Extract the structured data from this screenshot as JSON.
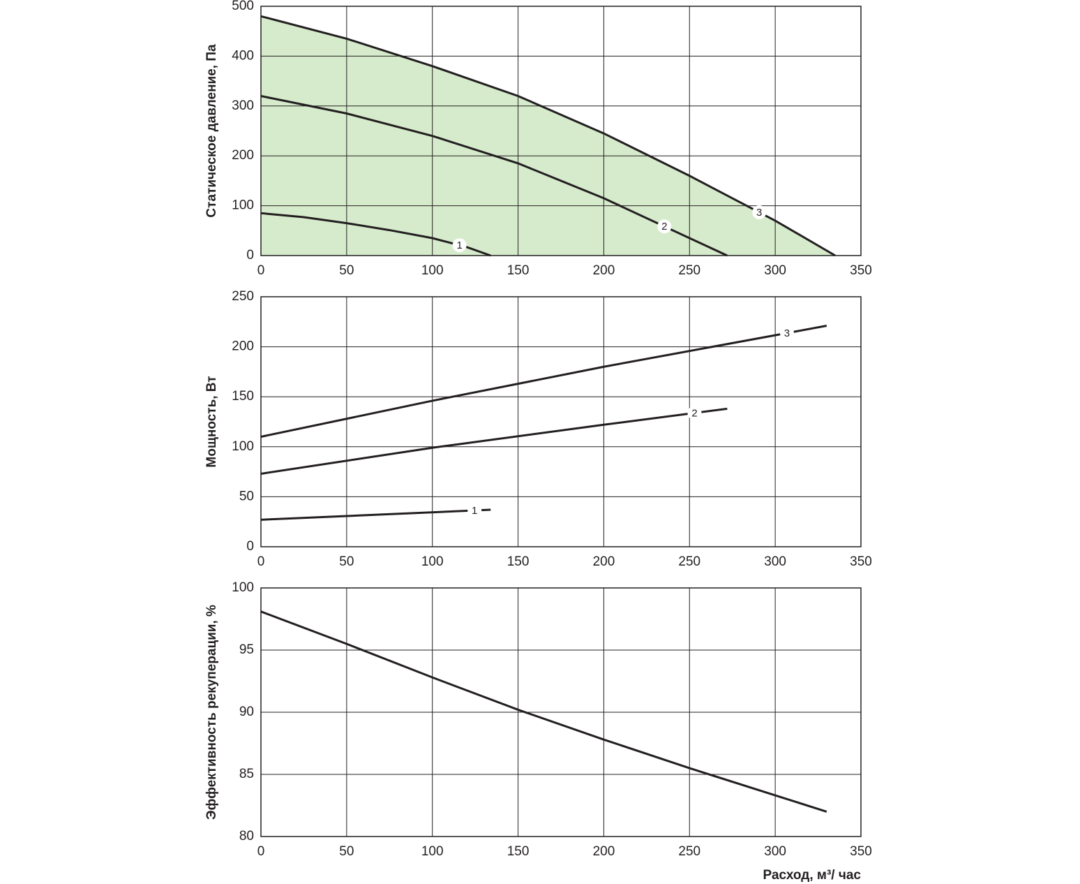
{
  "chart_data": [
    {
      "type": "line",
      "ylabel": "Статическое давление, Па",
      "xlim": [
        0,
        350
      ],
      "xticks": [
        0,
        50,
        100,
        150,
        200,
        250,
        300,
        350
      ],
      "ylim": [
        0,
        500
      ],
      "yticks": [
        0,
        100,
        200,
        300,
        400,
        500
      ],
      "grid": true,
      "area_color": "#d6ebcc",
      "series": [
        {
          "name": "1",
          "color": "#231f20",
          "x": [
            0,
            25,
            50,
            75,
            100,
            120,
            134
          ],
          "values": [
            85,
            77,
            65,
            51,
            35,
            17,
            0
          ]
        },
        {
          "name": "2",
          "color": "#231f20",
          "x": [
            0,
            50,
            100,
            150,
            200,
            250,
            272
          ],
          "values": [
            320,
            285,
            240,
            185,
            115,
            35,
            0
          ]
        },
        {
          "name": "3",
          "color": "#231f20",
          "x": [
            0,
            50,
            100,
            150,
            200,
            250,
            300,
            335
          ],
          "values": [
            480,
            435,
            380,
            320,
            245,
            160,
            70,
            0
          ]
        }
      ]
    },
    {
      "type": "line",
      "ylabel": "Мощность, Вт",
      "xlim": [
        0,
        350
      ],
      "xticks": [
        0,
        50,
        100,
        150,
        200,
        250,
        300,
        350
      ],
      "ylim": [
        0,
        250
      ],
      "yticks": [
        0,
        50,
        100,
        150,
        200,
        250
      ],
      "grid": true,
      "series": [
        {
          "name": "1",
          "color": "#231f20",
          "x": [
            0,
            134
          ],
          "values": [
            27,
            37
          ]
        },
        {
          "name": "2",
          "color": "#231f20",
          "x": [
            0,
            100,
            200,
            272
          ],
          "values": [
            73,
            99,
            122,
            138
          ]
        },
        {
          "name": "3",
          "color": "#231f20",
          "x": [
            0,
            100,
            200,
            330
          ],
          "values": [
            110,
            146,
            180,
            221
          ]
        }
      ]
    },
    {
      "type": "line",
      "ylabel": "Эффективность рекуперации, %",
      "xlabel": "Расход, м³/ час",
      "xlim": [
        0,
        350
      ],
      "xticks": [
        0,
        50,
        100,
        150,
        200,
        250,
        300,
        350
      ],
      "ylim": [
        80,
        100
      ],
      "yticks": [
        80,
        85,
        90,
        95,
        100
      ],
      "grid": true,
      "series": [
        {
          "color": "#231f20",
          "x": [
            0,
            50,
            100,
            150,
            200,
            250,
            330
          ],
          "values": [
            98.1,
            95.5,
            92.8,
            90.2,
            87.8,
            85.5,
            82
          ]
        }
      ]
    }
  ]
}
